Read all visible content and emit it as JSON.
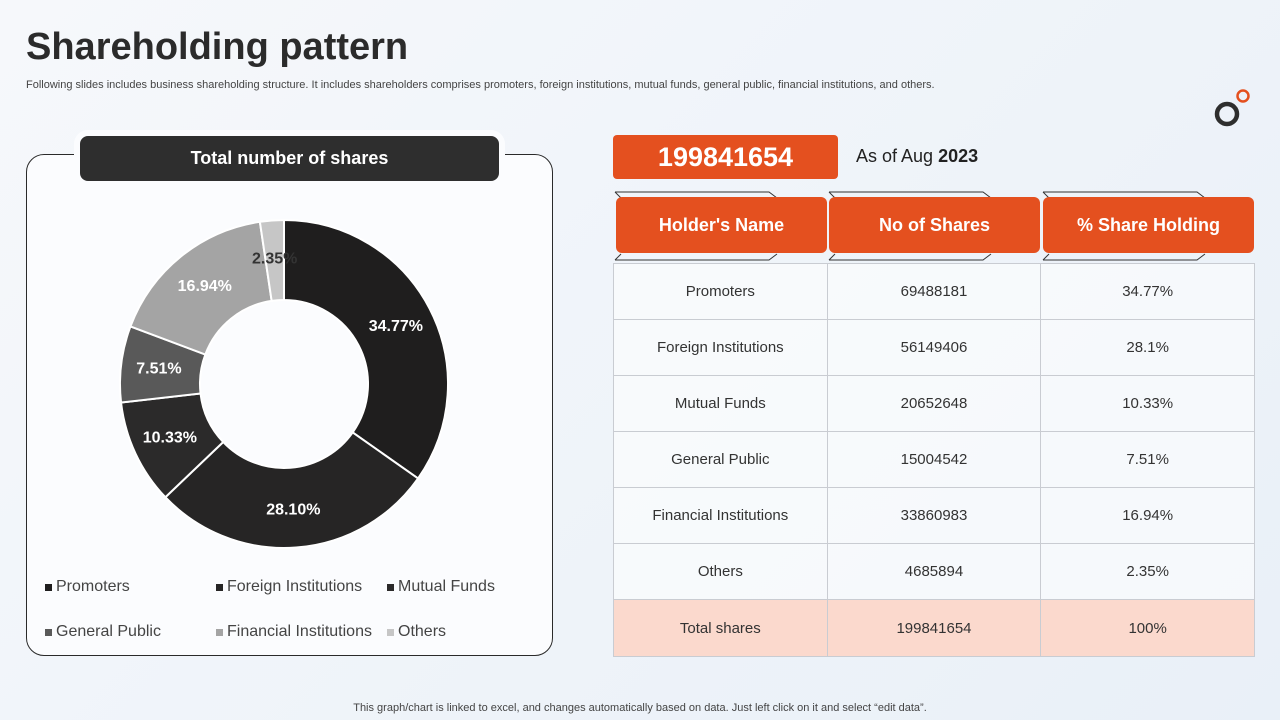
{
  "page": {
    "title": "Shareholding pattern",
    "subtitle": "Following slides includes business shareholding structure. It includes shareholders comprises promoters, foreign institutions, mutual funds, general public, financial institutions, and others.",
    "footer": "This graph/chart is linked to excel,  and changes automatically based on data. Just left click on it and select “edit data”."
  },
  "chart_panel": {
    "header": "Total number of shares"
  },
  "summary": {
    "total": "199841654",
    "as_of_prefix": "As of Aug",
    "as_of_year": "2023"
  },
  "table": {
    "headers": [
      "Holder's Name",
      "No of Shares",
      "% Share Holding"
    ],
    "rows": [
      [
        "Promoters",
        "69488181",
        "34.77%"
      ],
      [
        "Foreign Institutions",
        "56149406",
        "28.1%"
      ],
      [
        "Mutual Funds",
        "20652648",
        "10.33%"
      ],
      [
        "General Public",
        "15004542",
        "7.51%"
      ],
      [
        "Financial Institutions",
        "33860983",
        "16.94%"
      ],
      [
        "Others",
        "4685894",
        "2.35%"
      ]
    ],
    "total_row": [
      "Total shares",
      "199841654",
      "100%"
    ]
  },
  "colors": {
    "accent": "#e4501f",
    "total_row_bg": "#fbd9cd",
    "dark": "#2e2e2e"
  },
  "chart_data": {
    "type": "pie",
    "donut": true,
    "title": "Total number of shares",
    "categories": [
      "Promoters",
      "Foreign Institutions",
      "Mutual Funds",
      "General Public",
      "Financial Institutions",
      "Others"
    ],
    "values": [
      34.77,
      28.1,
      10.33,
      7.51,
      16.94,
      2.35
    ],
    "labels": [
      "34.77%",
      "28.10%",
      "10.33%",
      "7.51%",
      "16.94%",
      "2.35%"
    ],
    "colors": [
      "#1f1e1e",
      "#262525",
      "#2b2a2a",
      "#595959",
      "#a4a4a4",
      "#c6c6c6"
    ],
    "label_colors": [
      "#ffffff",
      "#ffffff",
      "#ffffff",
      "#ffffff",
      "#ffffff",
      "#333333"
    ],
    "legend": [
      {
        "label": "Promoters",
        "color": "#1f1e1e"
      },
      {
        "label": "Foreign Institutions",
        "color": "#262525"
      },
      {
        "label": "Mutual Funds",
        "color": "#2b2a2a"
      },
      {
        "label": "General Public",
        "color": "#595959"
      },
      {
        "label": "Financial Institutions",
        "color": "#a4a4a4"
      },
      {
        "label": "Others",
        "color": "#c6c6c6"
      }
    ],
    "legend_position": "bottom"
  }
}
